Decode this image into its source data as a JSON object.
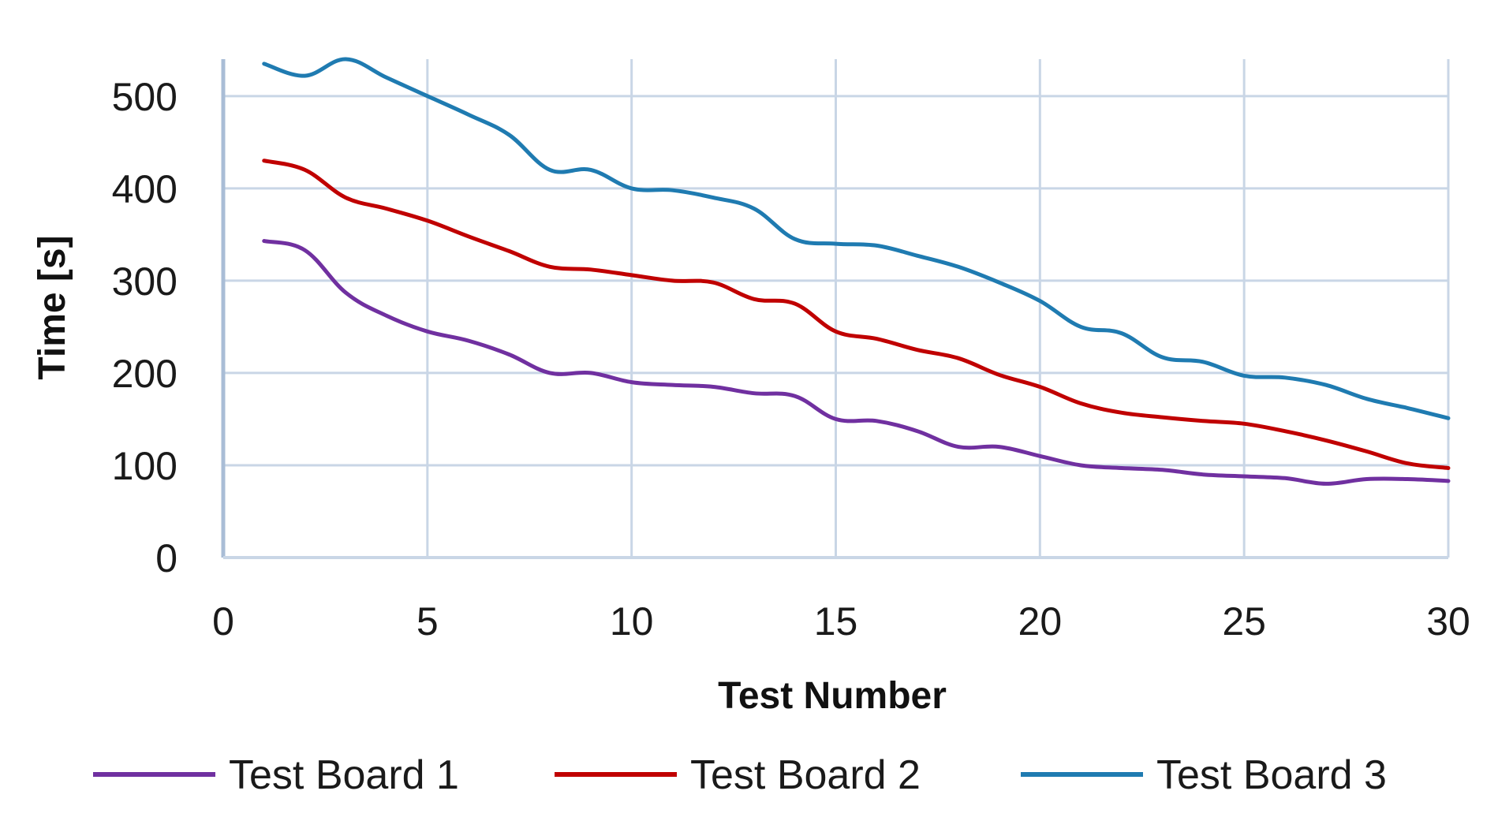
{
  "chart_data": {
    "type": "line",
    "title": "",
    "xlabel": "Test Number",
    "ylabel": "Time [s]",
    "xlim": [
      0,
      30
    ],
    "ylim": [
      0,
      540
    ],
    "xticks": [
      0,
      5,
      10,
      15,
      20,
      25,
      30
    ],
    "yticks": [
      0,
      100,
      200,
      300,
      400,
      500
    ],
    "grid": true,
    "legend_position": "bottom",
    "x": [
      1,
      2,
      3,
      4,
      5,
      6,
      7,
      8,
      9,
      10,
      11,
      12,
      13,
      14,
      15,
      16,
      17,
      18,
      19,
      20,
      21,
      22,
      23,
      24,
      25,
      26,
      27,
      28,
      29,
      30
    ],
    "series": [
      {
        "name": "Test Board 1",
        "color": "#7030a0",
        "values": [
          343,
          333,
          287,
          262,
          245,
          235,
          220,
          200,
          200,
          190,
          187,
          185,
          178,
          175,
          150,
          148,
          137,
          120,
          120,
          110,
          100,
          97,
          95,
          90,
          88,
          86,
          80,
          85,
          85,
          83
        ]
      },
      {
        "name": "Test Board 2",
        "color": "#c00000",
        "values": [
          430,
          420,
          390,
          378,
          365,
          348,
          332,
          315,
          312,
          306,
          300,
          298,
          280,
          275,
          245,
          237,
          225,
          216,
          198,
          185,
          167,
          157,
          152,
          148,
          145,
          137,
          127,
          115,
          102,
          97
        ]
      },
      {
        "name": "Test Board 3",
        "color": "#1f7bb1",
        "values": [
          535,
          522,
          540,
          520,
          500,
          480,
          458,
          420,
          420,
          400,
          398,
          390,
          378,
          345,
          340,
          338,
          327,
          315,
          298,
          278,
          250,
          243,
          217,
          212,
          197,
          195,
          187,
          172,
          162,
          151
        ]
      }
    ]
  }
}
